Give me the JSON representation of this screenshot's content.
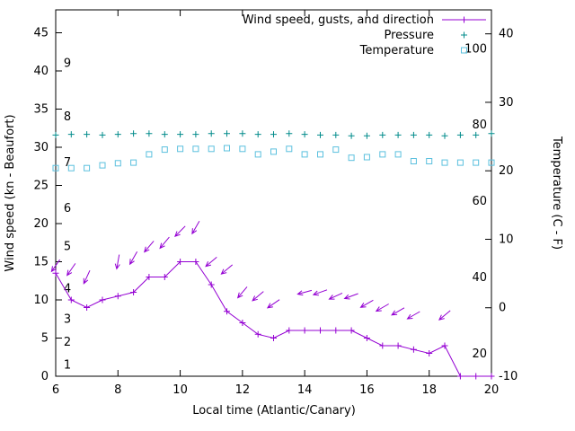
{
  "figure": {
    "background": "#ffffff",
    "axis_color": "#000000"
  },
  "chart_data": {
    "type": "line",
    "title": "",
    "xlabel": "Local time (Atlantic/Canary)",
    "ylabel_left": "Wind speed (kn - Beaufort)",
    "ylabel_right": "Temperature (C - F)",
    "xlim": [
      6,
      20
    ],
    "ylim_left": [
      0,
      48
    ],
    "ylim_right": [
      -10,
      43.5
    ],
    "x_ticks": [
      6,
      8,
      10,
      12,
      14,
      16,
      18,
      20
    ],
    "y_ticks_left": [
      0,
      5,
      10,
      15,
      20,
      25,
      30,
      35,
      40,
      45
    ],
    "y_ticks_right": [
      -10,
      0,
      10,
      20,
      30,
      40
    ],
    "grid": false,
    "legend_position": "top-right-inside",
    "beaufort_inner_labels": [
      {
        "label": "1",
        "kn": 1.5
      },
      {
        "label": "2",
        "kn": 4.5
      },
      {
        "label": "3",
        "kn": 7.5
      },
      {
        "label": "4",
        "kn": 11.5
      },
      {
        "label": "5",
        "kn": 17
      },
      {
        "label": "6",
        "kn": 22
      },
      {
        "label": "7",
        "kn": 28
      },
      {
        "label": "8",
        "kn": 34
      },
      {
        "label": "9",
        "kn": 41
      }
    ],
    "fahrenheit_inner_labels": [
      {
        "label": "20",
        "c": -6.7
      },
      {
        "label": "40",
        "c": 4.4
      },
      {
        "label": "60",
        "c": 15.6
      },
      {
        "label": "80",
        "c": 26.7
      },
      {
        "label": "100",
        "c": 37.8
      }
    ],
    "legend": [
      {
        "label": "Wind speed, gusts, and direction",
        "marker": "plus-line",
        "color": "#9400d3"
      },
      {
        "label": "Pressure",
        "marker": "plus",
        "color": "#008b8b"
      },
      {
        "label": "Temperature",
        "marker": "open-square",
        "color": "#5bc0de"
      }
    ],
    "x": [
      6,
      6.5,
      7,
      7.5,
      8,
      8.5,
      9,
      9.5,
      10,
      10.5,
      11,
      11.5,
      12,
      12.5,
      13,
      13.5,
      14,
      14.5,
      15,
      15.5,
      16,
      16.5,
      17,
      17.5,
      18,
      18.5,
      19,
      19.5,
      20
    ],
    "series": [
      {
        "name": "wind_speed_kn",
        "axis": "left",
        "color": "#9400d3",
        "style": "line-plus",
        "values": [
          13.5,
          10,
          9,
          10,
          10.5,
          11,
          13,
          13,
          15,
          15,
          12,
          8.5,
          7,
          5.5,
          5,
          6,
          6,
          6,
          6,
          6,
          5,
          4,
          4,
          3.5,
          3,
          4,
          0,
          0,
          0
        ]
      },
      {
        "name": "pressure_plotted_on_left_kn_scale",
        "axis": "left",
        "color": "#008b8b",
        "style": "plus",
        "values": [
          31.6,
          31.7,
          31.7,
          31.6,
          31.7,
          31.8,
          31.8,
          31.7,
          31.7,
          31.7,
          31.8,
          31.8,
          31.8,
          31.7,
          31.7,
          31.8,
          31.7,
          31.6,
          31.6,
          31.5,
          31.5,
          31.6,
          31.6,
          31.6,
          31.6,
          31.5,
          31.6,
          31.6,
          31.8
        ]
      },
      {
        "name": "temperature_c",
        "axis": "right",
        "color": "#5bc0de",
        "style": "open-square",
        "values": [
          20.4,
          20.4,
          20.4,
          20.8,
          21.1,
          21.2,
          22.4,
          23.1,
          23.2,
          23.2,
          23.2,
          23.3,
          23.2,
          22.4,
          22.8,
          23.2,
          22.4,
          22.4,
          23.1,
          21.9,
          22.0,
          22.4,
          22.4,
          21.4,
          21.4,
          21.2,
          21.2,
          21.2,
          21.2
        ]
      }
    ],
    "wind_gust_arrows": [
      {
        "x": 6,
        "kn": 14.5,
        "dir": 125
      },
      {
        "x": 6.5,
        "kn": 14,
        "dir": 125
      },
      {
        "x": 7,
        "kn": 13,
        "dir": 115
      },
      {
        "x": 8,
        "kn": 15,
        "dir": 100
      },
      {
        "x": 8.5,
        "kn": 15.5,
        "dir": 120
      },
      {
        "x": 9,
        "kn": 17,
        "dir": 130
      },
      {
        "x": 9.5,
        "kn": 17.5,
        "dir": 130
      },
      {
        "x": 10,
        "kn": 19,
        "dir": 135
      },
      {
        "x": 10.5,
        "kn": 19.5,
        "dir": 120
      },
      {
        "x": 11,
        "kn": 15,
        "dir": 140
      },
      {
        "x": 11.5,
        "kn": 14,
        "dir": 140
      },
      {
        "x": 12,
        "kn": 11,
        "dir": 130
      },
      {
        "x": 12.5,
        "kn": 10.5,
        "dir": 140
      },
      {
        "x": 13,
        "kn": 9.5,
        "dir": 145
      },
      {
        "x": 14,
        "kn": 11,
        "dir": 165
      },
      {
        "x": 14.5,
        "kn": 11,
        "dir": 160
      },
      {
        "x": 15,
        "kn": 10.5,
        "dir": 155
      },
      {
        "x": 15.5,
        "kn": 10.5,
        "dir": 160
      },
      {
        "x": 16,
        "kn": 9.5,
        "dir": 150
      },
      {
        "x": 16.5,
        "kn": 9,
        "dir": 150
      },
      {
        "x": 17,
        "kn": 8.5,
        "dir": 150
      },
      {
        "x": 17.5,
        "kn": 8,
        "dir": 150
      },
      {
        "x": 18.5,
        "kn": 8,
        "dir": 140
      }
    ]
  }
}
